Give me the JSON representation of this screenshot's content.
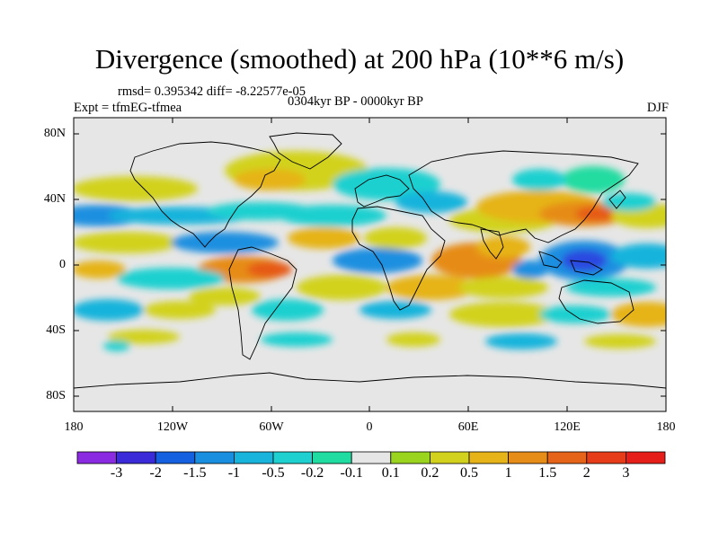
{
  "title": "Divergence (smoothed) at 200 hPa (10**6 m/s)",
  "stats": "rmsd= 0.395342 diff= -8.22577e-05",
  "experiment": "Expt = tfmEG-tfmea",
  "period": "0304kyr BP - 0000kyr BP",
  "season": "DJF",
  "y_axis_labels": [
    "80N",
    "40N",
    "0",
    "40S",
    "80S"
  ],
  "x_axis_labels": [
    "180",
    "120W",
    "60W",
    "0",
    "60E",
    "120E",
    "180"
  ],
  "colorbar": {
    "labels": [
      "-3",
      "-2",
      "-1.5",
      "-1",
      "-0.5",
      "-0.2",
      "-0.1",
      "0.1",
      "0.2",
      "0.5",
      "1",
      "1.5",
      "2",
      "3"
    ],
    "colors": [
      "#8a2be2",
      "#3a2ad8",
      "#1560e0",
      "#1a8fe0",
      "#19b4dc",
      "#1fd0d0",
      "#20dca0",
      "#e6e6e6",
      "#9ad41e",
      "#d2d21e",
      "#e6b419",
      "#e68c19",
      "#e66419",
      "#e63c19",
      "#e61e19"
    ]
  },
  "legend_colors": {
    "neutral": "#e6e6e6",
    "weak_pos": "#9ad41e",
    "pos": "#d2d21e",
    "mod_pos": "#e6b419",
    "strong_pos": "#e68c19",
    "very_strong_pos": "#e65a19",
    "weak_neg": "#20dca0",
    "neg": "#1fd0d0",
    "mod_neg": "#19b4dc",
    "strong_neg": "#1a8fe0",
    "very_strong_neg": "#2a4ae0"
  }
}
